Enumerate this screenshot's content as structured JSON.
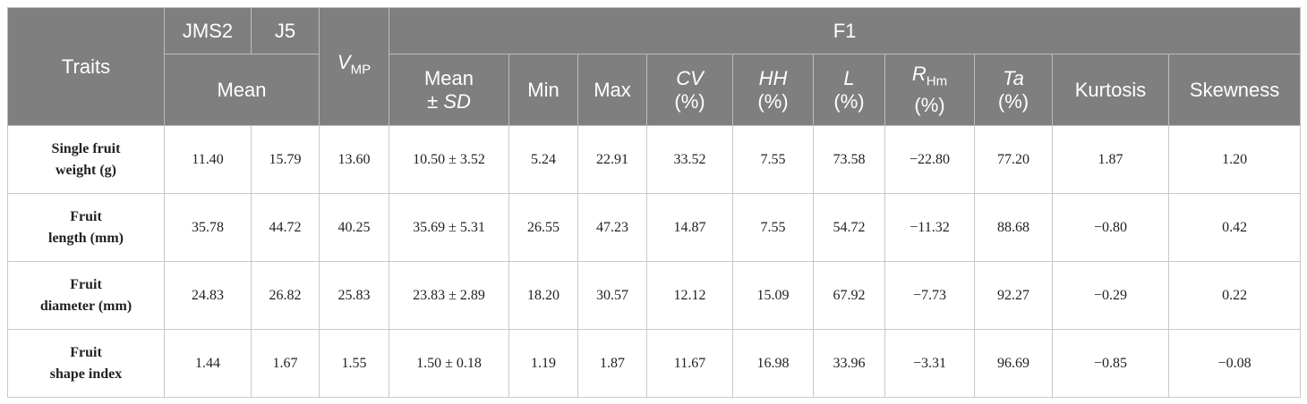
{
  "header": {
    "traits": "Traits",
    "parents": [
      "JMS2",
      "J5"
    ],
    "mean": "Mean",
    "vmp": {
      "symbol": "V",
      "sub": "MP"
    },
    "f1": "F1",
    "columns": [
      {
        "line1": "Mean",
        "line2": "±",
        "line2_italic": "SD"
      },
      {
        "plain": "Min"
      },
      {
        "plain": "Max"
      },
      {
        "symbol": "CV",
        "unit": "(%)"
      },
      {
        "symbol": "HH",
        "unit": "(%)"
      },
      {
        "symbol": "L",
        "unit": "(%)"
      },
      {
        "symbol": "R",
        "sub": "Hm",
        "unit": "(%)"
      },
      {
        "symbol": "Ta",
        "unit": "(%)"
      },
      {
        "plain": "Kurtosis"
      },
      {
        "plain": "Skewness"
      }
    ]
  },
  "table": {
    "rows": [
      {
        "trait": [
          "Single fruit",
          "weight (g)"
        ],
        "cells": [
          "11.40",
          "15.79",
          "13.60",
          "10.50 ± 3.52",
          "5.24",
          "22.91",
          "33.52",
          "7.55",
          "73.58",
          "−22.80",
          "77.20",
          "1.87",
          "1.20"
        ]
      },
      {
        "trait": [
          "Fruit",
          "length (mm)"
        ],
        "cells": [
          "35.78",
          "44.72",
          "40.25",
          "35.69 ± 5.31",
          "26.55",
          "47.23",
          "14.87",
          "7.55",
          "54.72",
          "−11.32",
          "88.68",
          "−0.80",
          "0.42"
        ]
      },
      {
        "trait": [
          "Fruit",
          "diameter (mm)"
        ],
        "cells": [
          "24.83",
          "26.82",
          "25.83",
          "23.83 ± 2.89",
          "18.20",
          "30.57",
          "12.12",
          "15.09",
          "67.92",
          "−7.73",
          "92.27",
          "−0.29",
          "0.22"
        ]
      },
      {
        "trait": [
          "Fruit",
          "shape index"
        ],
        "cells": [
          "1.44",
          "1.67",
          "1.55",
          "1.50 ± 0.18",
          "1.19",
          "1.87",
          "11.67",
          "16.98",
          "33.96",
          "−3.31",
          "96.69",
          "−0.85",
          "−0.08"
        ]
      }
    ]
  }
}
